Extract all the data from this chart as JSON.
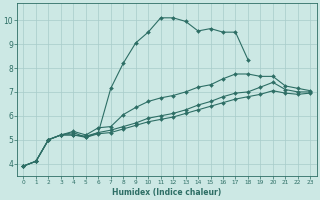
{
  "xlabel": "Humidex (Indice chaleur)",
  "bg_color": "#cce8e4",
  "grid_color": "#a8ccca",
  "line_color": "#2d6e65",
  "xlim": [
    -0.5,
    23.5
  ],
  "ylim": [
    3.5,
    10.7
  ],
  "xticks": [
    0,
    1,
    2,
    3,
    4,
    5,
    6,
    7,
    8,
    9,
    10,
    11,
    12,
    13,
    14,
    15,
    16,
    17,
    18,
    19,
    20,
    21,
    22,
    23
  ],
  "yticks": [
    4,
    5,
    6,
    7,
    8,
    9,
    10
  ],
  "lines": [
    {
      "x": [
        0,
        1,
        2,
        3,
        4,
        5,
        6,
        7,
        8,
        9,
        10,
        11,
        12,
        13,
        14,
        15,
        16,
        17,
        18
      ],
      "y": [
        3.9,
        4.1,
        5.0,
        5.2,
        5.3,
        5.1,
        5.3,
        7.15,
        8.2,
        9.05,
        9.5,
        10.1,
        10.1,
        9.95,
        9.55,
        9.65,
        9.5,
        9.5,
        8.35
      ]
    },
    {
      "x": [
        0,
        1,
        2,
        3,
        4,
        5,
        6,
        7,
        8,
        9,
        10,
        11,
        12,
        13,
        14,
        15,
        16,
        17,
        18,
        19,
        20,
        21,
        22,
        23
      ],
      "y": [
        3.9,
        4.1,
        5.0,
        5.2,
        5.35,
        5.2,
        5.5,
        5.55,
        6.05,
        6.35,
        6.6,
        6.75,
        6.85,
        7.0,
        7.2,
        7.3,
        7.55,
        7.75,
        7.75,
        7.65,
        7.65,
        7.25,
        7.15,
        7.05
      ]
    },
    {
      "x": [
        0,
        1,
        2,
        3,
        4,
        5,
        6,
        7,
        8,
        9,
        10,
        11,
        12,
        13,
        14,
        15,
        16,
        17,
        18,
        19,
        20,
        21,
        22,
        23
      ],
      "y": [
        3.9,
        4.1,
        5.0,
        5.2,
        5.2,
        5.15,
        5.3,
        5.4,
        5.55,
        5.7,
        5.9,
        6.0,
        6.1,
        6.25,
        6.45,
        6.6,
        6.8,
        6.95,
        7.0,
        7.2,
        7.4,
        7.1,
        7.0,
        7.0
      ]
    },
    {
      "x": [
        0,
        1,
        2,
        3,
        4,
        5,
        6,
        7,
        8,
        9,
        10,
        11,
        12,
        13,
        14,
        15,
        16,
        17,
        18,
        19,
        20,
        21,
        22,
        23
      ],
      "y": [
        3.9,
        4.1,
        5.0,
        5.2,
        5.2,
        5.1,
        5.25,
        5.3,
        5.45,
        5.6,
        5.75,
        5.85,
        5.95,
        6.1,
        6.25,
        6.4,
        6.55,
        6.7,
        6.8,
        6.9,
        7.05,
        6.95,
        6.9,
        6.95
      ]
    }
  ]
}
